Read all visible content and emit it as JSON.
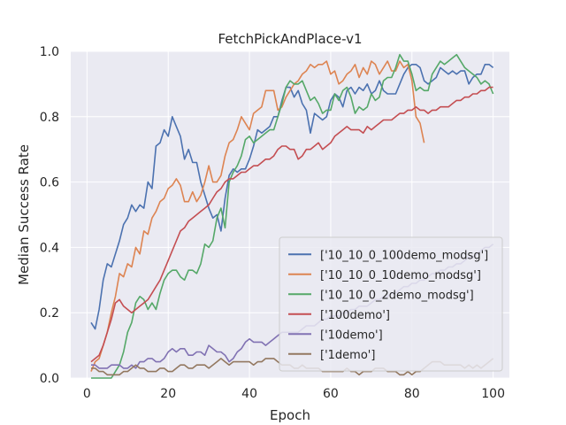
{
  "chart_data": {
    "type": "line",
    "title": "FetchPickAndPlace-v1",
    "xlabel": "Epoch",
    "ylabel": "Median Success Rate",
    "xlim": [
      -4,
      104
    ],
    "ylim": [
      0,
      1
    ],
    "xticks": [
      0,
      20,
      40,
      60,
      80,
      100
    ],
    "yticks": [
      0.0,
      0.2,
      0.4,
      0.6,
      0.8,
      1.0
    ],
    "xtick_labels": [
      "0",
      "20",
      "40",
      "60",
      "80",
      "100"
    ],
    "ytick_labels": [
      "0.0",
      "0.2",
      "0.4",
      "0.6",
      "0.8",
      "1.0"
    ],
    "grid": true,
    "legend_position": "lower-right",
    "series": [
      {
        "name": "['10_10_0_100demo_modsg']",
        "color": "#4c72b0",
        "x": [
          1,
          2,
          3,
          4,
          5,
          6,
          7,
          8,
          9,
          10,
          11,
          12,
          13,
          14,
          15,
          16,
          17,
          18,
          19,
          20,
          21,
          22,
          23,
          24,
          25,
          26,
          27,
          28,
          29,
          30,
          31,
          32,
          33,
          34,
          35,
          36,
          37,
          38,
          39,
          40,
          41,
          42,
          43,
          44,
          45,
          46,
          47,
          48,
          49,
          50,
          51,
          52,
          53,
          54,
          55,
          56,
          57,
          58,
          59,
          60,
          61,
          62,
          63,
          64,
          65,
          66,
          67,
          68,
          69,
          70,
          71,
          72,
          73,
          74,
          75,
          76,
          77,
          78,
          79,
          80,
          81,
          82,
          83,
          84,
          85,
          86,
          87,
          88,
          89,
          90,
          91,
          92,
          93,
          94,
          95,
          96,
          97,
          98,
          99,
          100
        ],
        "y": [
          0.17,
          0.15,
          0.21,
          0.3,
          0.35,
          0.34,
          0.38,
          0.42,
          0.47,
          0.49,
          0.53,
          0.51,
          0.53,
          0.52,
          0.6,
          0.58,
          0.71,
          0.72,
          0.76,
          0.74,
          0.8,
          0.77,
          0.74,
          0.67,
          0.7,
          0.66,
          0.66,
          0.6,
          0.56,
          0.52,
          0.49,
          0.5,
          0.45,
          0.55,
          0.62,
          0.64,
          0.63,
          0.64,
          0.64,
          0.67,
          0.71,
          0.76,
          0.75,
          0.76,
          0.77,
          0.8,
          0.8,
          0.85,
          0.89,
          0.89,
          0.86,
          0.88,
          0.84,
          0.82,
          0.75,
          0.81,
          0.8,
          0.79,
          0.8,
          0.85,
          0.87,
          0.86,
          0.83,
          0.88,
          0.89,
          0.87,
          0.89,
          0.88,
          0.9,
          0.87,
          0.88,
          0.91,
          0.88,
          0.87,
          0.87,
          0.87,
          0.9,
          0.93,
          0.95,
          0.96,
          0.96,
          0.95,
          0.91,
          0.9,
          0.91,
          0.92,
          0.95,
          0.94,
          0.93,
          0.94,
          0.93,
          0.94,
          0.94,
          0.9,
          0.92,
          0.93,
          0.93,
          0.96,
          0.96,
          0.95
        ]
      },
      {
        "name": "['10_10_0_10demo_modsg']",
        "color": "#dd8452",
        "x": [
          1,
          2,
          3,
          4,
          5,
          6,
          7,
          8,
          9,
          10,
          11,
          12,
          13,
          14,
          15,
          16,
          17,
          18,
          19,
          20,
          21,
          22,
          23,
          24,
          25,
          26,
          27,
          28,
          29,
          30,
          31,
          32,
          33,
          34,
          35,
          36,
          37,
          38,
          39,
          40,
          41,
          42,
          43,
          44,
          45,
          46,
          47,
          48,
          49,
          50,
          51,
          52,
          53,
          54,
          55,
          56,
          57,
          58,
          59,
          60,
          61,
          62,
          63,
          64,
          65,
          66,
          67,
          68,
          69,
          70,
          71,
          72,
          73,
          74,
          75,
          76,
          77,
          78,
          79,
          80,
          81,
          82,
          83
        ],
        "y": [
          0.02,
          0.05,
          0.06,
          0.1,
          0.14,
          0.2,
          0.25,
          0.32,
          0.31,
          0.35,
          0.34,
          0.4,
          0.38,
          0.45,
          0.44,
          0.49,
          0.51,
          0.54,
          0.55,
          0.58,
          0.59,
          0.61,
          0.59,
          0.54,
          0.54,
          0.57,
          0.54,
          0.56,
          0.6,
          0.65,
          0.6,
          0.6,
          0.62,
          0.68,
          0.72,
          0.73,
          0.76,
          0.8,
          0.78,
          0.76,
          0.81,
          0.82,
          0.83,
          0.88,
          0.88,
          0.88,
          0.82,
          0.83,
          0.86,
          0.88,
          0.9,
          0.91,
          0.93,
          0.94,
          0.96,
          0.95,
          0.96,
          0.96,
          0.97,
          0.93,
          0.94,
          0.9,
          0.91,
          0.93,
          0.94,
          0.96,
          0.92,
          0.95,
          0.93,
          0.97,
          0.96,
          0.93,
          0.95,
          0.97,
          0.94,
          0.94,
          0.97,
          0.95,
          0.96,
          0.91,
          0.8,
          0.78,
          0.72
        ]
      },
      {
        "name": "['10_10_0_2demo_modsg']",
        "color": "#55a868",
        "x": [
          1,
          2,
          3,
          4,
          5,
          6,
          7,
          8,
          9,
          10,
          11,
          12,
          13,
          14,
          15,
          16,
          17,
          18,
          19,
          20,
          21,
          22,
          23,
          24,
          25,
          26,
          27,
          28,
          29,
          30,
          31,
          32,
          33,
          34,
          35,
          36,
          37,
          38,
          39,
          40,
          41,
          42,
          43,
          44,
          45,
          46,
          47,
          48,
          49,
          50,
          51,
          52,
          53,
          54,
          55,
          56,
          57,
          58,
          59,
          60,
          61,
          62,
          63,
          64,
          65,
          66,
          67,
          68,
          69,
          70,
          71,
          72,
          73,
          74,
          75,
          76,
          77,
          78,
          79,
          80,
          81,
          82,
          83,
          84,
          85,
          86,
          87,
          88,
          89,
          90,
          91,
          92,
          93,
          94,
          95,
          96,
          97,
          98,
          99,
          100
        ],
        "y": [
          0.0,
          0.0,
          0.0,
          0.0,
          0.0,
          0.0,
          0.02,
          0.04,
          0.08,
          0.14,
          0.17,
          0.23,
          0.25,
          0.24,
          0.21,
          0.23,
          0.21,
          0.26,
          0.3,
          0.32,
          0.33,
          0.33,
          0.31,
          0.3,
          0.33,
          0.33,
          0.32,
          0.35,
          0.41,
          0.4,
          0.42,
          0.49,
          0.52,
          0.46,
          0.6,
          0.63,
          0.65,
          0.68,
          0.73,
          0.74,
          0.72,
          0.73,
          0.74,
          0.75,
          0.76,
          0.76,
          0.8,
          0.84,
          0.89,
          0.91,
          0.9,
          0.9,
          0.91,
          0.88,
          0.85,
          0.86,
          0.84,
          0.81,
          0.82,
          0.82,
          0.87,
          0.85,
          0.88,
          0.89,
          0.86,
          0.81,
          0.83,
          0.82,
          0.83,
          0.87,
          0.85,
          0.86,
          0.91,
          0.92,
          0.92,
          0.95,
          0.99,
          0.97,
          0.97,
          0.93,
          0.88,
          0.89,
          0.88,
          0.88,
          0.93,
          0.95,
          0.97,
          0.96,
          0.97,
          0.98,
          0.99,
          0.97,
          0.95,
          0.94,
          0.93,
          0.92,
          0.9,
          0.91,
          0.9,
          0.87
        ]
      },
      {
        "name": "['100demo']",
        "color": "#c44e52",
        "x": [
          1,
          2,
          3,
          4,
          5,
          6,
          7,
          8,
          9,
          10,
          11,
          12,
          13,
          14,
          15,
          16,
          17,
          18,
          19,
          20,
          21,
          22,
          23,
          24,
          25,
          26,
          27,
          28,
          29,
          30,
          31,
          32,
          33,
          34,
          35,
          36,
          37,
          38,
          39,
          40,
          41,
          42,
          43,
          44,
          45,
          46,
          47,
          48,
          49,
          50,
          51,
          52,
          53,
          54,
          55,
          56,
          57,
          58,
          59,
          60,
          61,
          62,
          63,
          64,
          65,
          66,
          67,
          68,
          69,
          70,
          71,
          72,
          73,
          74,
          75,
          76,
          77,
          78,
          79,
          80,
          81,
          82,
          83,
          84,
          85,
          86,
          87,
          88,
          89,
          90,
          91,
          92,
          93,
          94,
          95,
          96,
          97,
          98,
          99,
          100
        ],
        "y": [
          0.05,
          0.06,
          0.07,
          0.1,
          0.14,
          0.18,
          0.23,
          0.24,
          0.22,
          0.21,
          0.2,
          0.21,
          0.22,
          0.23,
          0.24,
          0.26,
          0.28,
          0.3,
          0.33,
          0.36,
          0.39,
          0.42,
          0.45,
          0.46,
          0.48,
          0.49,
          0.5,
          0.51,
          0.52,
          0.53,
          0.55,
          0.57,
          0.58,
          0.6,
          0.61,
          0.61,
          0.62,
          0.63,
          0.63,
          0.64,
          0.65,
          0.65,
          0.66,
          0.67,
          0.67,
          0.68,
          0.7,
          0.71,
          0.71,
          0.7,
          0.7,
          0.67,
          0.68,
          0.7,
          0.7,
          0.71,
          0.72,
          0.7,
          0.71,
          0.72,
          0.74,
          0.75,
          0.76,
          0.77,
          0.76,
          0.76,
          0.76,
          0.75,
          0.77,
          0.76,
          0.77,
          0.78,
          0.79,
          0.79,
          0.79,
          0.8,
          0.81,
          0.81,
          0.82,
          0.82,
          0.83,
          0.82,
          0.82,
          0.81,
          0.82,
          0.82,
          0.83,
          0.83,
          0.83,
          0.84,
          0.85,
          0.85,
          0.86,
          0.86,
          0.87,
          0.87,
          0.88,
          0.88,
          0.89,
          0.89
        ]
      },
      {
        "name": "['10demo']",
        "color": "#8172b3",
        "x": [
          1,
          2,
          3,
          4,
          5,
          6,
          7,
          8,
          9,
          10,
          11,
          12,
          13,
          14,
          15,
          16,
          17,
          18,
          19,
          20,
          21,
          22,
          23,
          24,
          25,
          26,
          27,
          28,
          29,
          30,
          31,
          32,
          33,
          34,
          35,
          36,
          37,
          38,
          39,
          40,
          41,
          42,
          43,
          44,
          45,
          46,
          47,
          48,
          49,
          50,
          51,
          52,
          53,
          54,
          55,
          56,
          57,
          58,
          59,
          60,
          61,
          62,
          63,
          64,
          65,
          66,
          67,
          68,
          69,
          70,
          71,
          72,
          73,
          74,
          75,
          76,
          77,
          78,
          79,
          80,
          81,
          82,
          83,
          84,
          85,
          86,
          87,
          88,
          89,
          90,
          91,
          92,
          93,
          94,
          95,
          96,
          97,
          98,
          99,
          100
        ],
        "y": [
          0.04,
          0.04,
          0.03,
          0.03,
          0.03,
          0.04,
          0.04,
          0.04,
          0.03,
          0.03,
          0.04,
          0.03,
          0.05,
          0.05,
          0.06,
          0.06,
          0.05,
          0.05,
          0.06,
          0.08,
          0.09,
          0.08,
          0.09,
          0.09,
          0.07,
          0.07,
          0.08,
          0.08,
          0.07,
          0.1,
          0.09,
          0.08,
          0.08,
          0.07,
          0.05,
          0.06,
          0.08,
          0.09,
          0.11,
          0.12,
          0.11,
          0.11,
          0.11,
          0.1,
          0.11,
          0.12,
          0.13,
          0.14,
          0.14,
          0.14,
          0.14,
          0.14,
          0.15,
          0.16,
          0.16,
          0.16,
          0.17,
          0.18,
          0.18,
          0.19,
          0.19,
          0.19,
          0.2,
          0.2,
          0.21,
          0.21,
          0.22,
          0.22,
          0.22,
          0.23,
          0.24,
          0.24,
          0.25,
          0.25,
          0.26,
          0.26,
          0.27,
          0.28,
          0.28,
          0.29,
          0.29,
          0.3,
          0.3,
          0.31,
          0.32,
          0.32,
          0.33,
          0.33,
          0.34,
          0.34,
          0.35,
          0.35,
          0.36,
          0.37,
          0.37,
          0.38,
          0.39,
          0.4,
          0.4,
          0.41
        ]
      },
      {
        "name": "['1demo']",
        "color": "#937860",
        "x": [
          1,
          2,
          3,
          4,
          5,
          6,
          7,
          8,
          9,
          10,
          11,
          12,
          13,
          14,
          15,
          16,
          17,
          18,
          19,
          20,
          21,
          22,
          23,
          24,
          25,
          26,
          27,
          28,
          29,
          30,
          31,
          32,
          33,
          34,
          35,
          36,
          37,
          38,
          39,
          40,
          41,
          42,
          43,
          44,
          45,
          46,
          47,
          48,
          49,
          50,
          51,
          52,
          53,
          54,
          55,
          56,
          57,
          58,
          59,
          60,
          61,
          62,
          63,
          64,
          65,
          66,
          67,
          68,
          69,
          70,
          71,
          72,
          73,
          74,
          75,
          76,
          77,
          78,
          79,
          80,
          81,
          82,
          83,
          84,
          85,
          86,
          87,
          88,
          89,
          90,
          91,
          92,
          93,
          94,
          95,
          96,
          97,
          98,
          99,
          100
        ],
        "y": [
          0.03,
          0.03,
          0.02,
          0.02,
          0.01,
          0.01,
          0.01,
          0.01,
          0.02,
          0.02,
          0.03,
          0.04,
          0.03,
          0.03,
          0.02,
          0.02,
          0.02,
          0.03,
          0.03,
          0.02,
          0.02,
          0.03,
          0.04,
          0.04,
          0.03,
          0.03,
          0.04,
          0.04,
          0.04,
          0.03,
          0.04,
          0.05,
          0.06,
          0.05,
          0.04,
          0.05,
          0.05,
          0.05,
          0.05,
          0.05,
          0.04,
          0.05,
          0.05,
          0.06,
          0.06,
          0.06,
          0.05,
          0.04,
          0.04,
          0.04,
          0.03,
          0.03,
          0.04,
          0.03,
          0.03,
          0.03,
          0.03,
          0.02,
          0.02,
          0.02,
          0.02,
          0.02,
          0.02,
          0.03,
          0.02,
          0.02,
          0.01,
          0.02,
          0.02,
          0.02,
          0.03,
          0.03,
          0.03,
          0.02,
          0.02,
          0.02,
          0.01,
          0.01,
          0.02,
          0.01,
          0.02,
          0.02,
          0.03,
          0.04,
          0.05,
          0.05,
          0.05,
          0.04,
          0.04,
          0.04,
          0.04,
          0.04,
          0.03,
          0.04,
          0.03,
          0.04,
          0.03,
          0.04,
          0.05,
          0.06
        ]
      }
    ]
  }
}
